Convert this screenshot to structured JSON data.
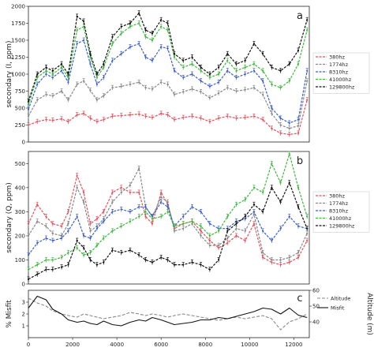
{
  "chart_data": [
    {
      "panel": "a",
      "type": "line",
      "ylabel": "secondary (I, ppm)",
      "ylim": [
        0,
        2000
      ],
      "yticks": [
        0,
        250,
        500,
        750,
        1000,
        1250,
        1500,
        1750,
        2000
      ],
      "xlim": [
        0,
        12700
      ],
      "legend_position": "right",
      "x": [
        0,
        400,
        800,
        1100,
        1500,
        1800,
        2200,
        2500,
        2800,
        3100,
        3400,
        3800,
        4200,
        4600,
        5000,
        5300,
        5600,
        6000,
        6300,
        6600,
        7000,
        7400,
        7800,
        8200,
        8600,
        9000,
        9400,
        9800,
        10200,
        10600,
        11000,
        11400,
        11800,
        12200,
        12600
      ],
      "series": [
        {
          "name": "380hz",
          "color": "#e8505b",
          "values": [
            250,
            300,
            330,
            320,
            340,
            300,
            400,
            420,
            350,
            300,
            330,
            380,
            390,
            400,
            410,
            380,
            360,
            420,
            400,
            330,
            360,
            380,
            350,
            300,
            350,
            380,
            350,
            360,
            380,
            330,
            200,
            130,
            110,
            130,
            620
          ]
        },
        {
          "name": "1774hz",
          "color": "#888888",
          "values": [
            380,
            620,
            700,
            680,
            750,
            620,
            850,
            900,
            760,
            620,
            680,
            800,
            820,
            850,
            880,
            800,
            780,
            880,
            850,
            700,
            740,
            780,
            740,
            650,
            720,
            800,
            750,
            770,
            800,
            700,
            420,
            250,
            200,
            240,
            900
          ]
        },
        {
          "name": "8310hz",
          "color": "#3a5fcd",
          "values": [
            480,
            850,
            1000,
            950,
            1050,
            880,
            1450,
            1500,
            1150,
            850,
            950,
            1200,
            1300,
            1400,
            1450,
            1250,
            1200,
            1400,
            1380,
            1050,
            950,
            1000,
            900,
            820,
            880,
            1050,
            950,
            1000,
            1050,
            900,
            500,
            350,
            280,
            330,
            1050
          ]
        },
        {
          "name": "41000hz",
          "color": "#3cb83c",
          "values": [
            550,
            950,
            1050,
            1000,
            1100,
            950,
            1650,
            1700,
            1250,
            950,
            1100,
            1450,
            1600,
            1700,
            1750,
            1550,
            1500,
            1700,
            1650,
            1250,
            1100,
            1150,
            1050,
            950,
            1000,
            1200,
            1050,
            1100,
            1150,
            1050,
            850,
            800,
            900,
            1150,
            1650
          ]
        },
        {
          "name": "129800hz",
          "color": "#111111",
          "values": [
            600,
            1000,
            1100,
            1050,
            1150,
            1000,
            1850,
            1780,
            1300,
            1000,
            1150,
            1550,
            1700,
            1750,
            1900,
            1650,
            1600,
            1800,
            1750,
            1300,
            1200,
            1250,
            1100,
            1000,
            1100,
            1300,
            1150,
            1200,
            1450,
            1300,
            1100,
            1050,
            1150,
            1350,
            1800
          ]
        }
      ]
    },
    {
      "panel": "b",
      "type": "line",
      "ylabel": "secondary (Q, ppm)",
      "ylim": [
        0,
        550
      ],
      "yticks": [
        0,
        100,
        200,
        300,
        400,
        500
      ],
      "xlim": [
        0,
        12700
      ],
      "legend_position": "right",
      "x": [
        0,
        400,
        800,
        1100,
        1500,
        1800,
        2200,
        2500,
        2800,
        3100,
        3400,
        3800,
        4200,
        4600,
        5000,
        5300,
        5600,
        6000,
        6300,
        6600,
        7000,
        7400,
        7800,
        8200,
        8600,
        9000,
        9400,
        9800,
        10200,
        10600,
        11000,
        11400,
        11800,
        12200,
        12600
      ],
      "series": [
        {
          "name": "380hz",
          "color": "#e8505b",
          "values": [
            250,
            330,
            280,
            250,
            240,
            300,
            450,
            380,
            250,
            270,
            300,
            380,
            400,
            380,
            380,
            280,
            250,
            380,
            330,
            230,
            250,
            260,
            220,
            180,
            150,
            170,
            200,
            180,
            250,
            110,
            90,
            80,
            90,
            110,
            180
          ]
        },
        {
          "name": "1774hz",
          "color": "#888888",
          "values": [
            200,
            260,
            240,
            210,
            200,
            250,
            400,
            340,
            220,
            240,
            270,
            340,
            380,
            410,
            480,
            320,
            280,
            360,
            340,
            220,
            230,
            250,
            200,
            160,
            160,
            190,
            230,
            220,
            290,
            130,
            100,
            100,
            110,
            130,
            210
          ]
        },
        {
          "name": "8310hz",
          "color": "#3a5fcd",
          "values": [
            120,
            170,
            190,
            180,
            190,
            220,
            280,
            200,
            190,
            230,
            260,
            300,
            310,
            300,
            320,
            320,
            280,
            340,
            320,
            240,
            280,
            320,
            300,
            250,
            230,
            230,
            260,
            270,
            300,
            220,
            180,
            230,
            280,
            240,
            230
          ]
        },
        {
          "name": "41000hz",
          "color": "#3cb83c",
          "values": [
            60,
            80,
            100,
            100,
            110,
            130,
            150,
            120,
            130,
            160,
            190,
            220,
            240,
            260,
            280,
            300,
            270,
            280,
            300,
            240,
            250,
            260,
            240,
            200,
            220,
            280,
            330,
            350,
            400,
            380,
            500,
            420,
            540,
            400,
            280
          ]
        },
        {
          "name": "129800hz",
          "color": "#111111",
          "values": [
            20,
            40,
            60,
            60,
            70,
            80,
            180,
            150,
            100,
            80,
            90,
            140,
            130,
            140,
            120,
            100,
            90,
            110,
            100,
            80,
            80,
            90,
            80,
            60,
            100,
            220,
            250,
            280,
            330,
            300,
            400,
            340,
            420,
            320,
            230
          ]
        }
      ]
    },
    {
      "panel": "c",
      "type": "line",
      "ylabel": "% Misfit",
      "ylabel_right": "Altitude (m)",
      "ylim": [
        0,
        4
      ],
      "yticks": [
        1,
        2,
        3
      ],
      "ylim_right": [
        30,
        60
      ],
      "yticks_right": [
        40,
        50,
        60
      ],
      "xlim": [
        0,
        12700
      ],
      "xticks": [
        0,
        2000,
        4000,
        6000,
        8000,
        10000,
        12000
      ],
      "legend_position": "right",
      "x": [
        0,
        400,
        800,
        1100,
        1500,
        1800,
        2200,
        2500,
        2800,
        3100,
        3400,
        3800,
        4200,
        4600,
        5000,
        5300,
        5600,
        6000,
        6300,
        6600,
        7000,
        7400,
        7800,
        8200,
        8600,
        9000,
        9400,
        9800,
        10200,
        10600,
        11000,
        11400,
        11800,
        12200,
        12600
      ],
      "series": [
        {
          "name": "Altitude",
          "axis": "right",
          "color": "#888888",
          "dash": true,
          "values": [
            55,
            52,
            50,
            47,
            45,
            44,
            43,
            45,
            44,
            43,
            42,
            43,
            44,
            46,
            45,
            44,
            45,
            44,
            43,
            44,
            45,
            44,
            43,
            42,
            41,
            42,
            43,
            42,
            43,
            44,
            42,
            35,
            40,
            42,
            45
          ]
        },
        {
          "name": "Misfit",
          "axis": "left",
          "color": "#111111",
          "dash": false,
          "values": [
            2.5,
            3.5,
            3.2,
            2.4,
            2.0,
            1.5,
            1.3,
            1.4,
            1.2,
            1.1,
            1.4,
            1.1,
            1.0,
            1.3,
            1.5,
            1.4,
            1.7,
            1.5,
            1.3,
            1.1,
            1.2,
            1.3,
            1.5,
            1.5,
            1.7,
            1.6,
            1.8,
            2.0,
            2.2,
            2.5,
            2.4,
            2.0,
            2.5,
            1.9,
            1.7
          ]
        }
      ]
    }
  ]
}
